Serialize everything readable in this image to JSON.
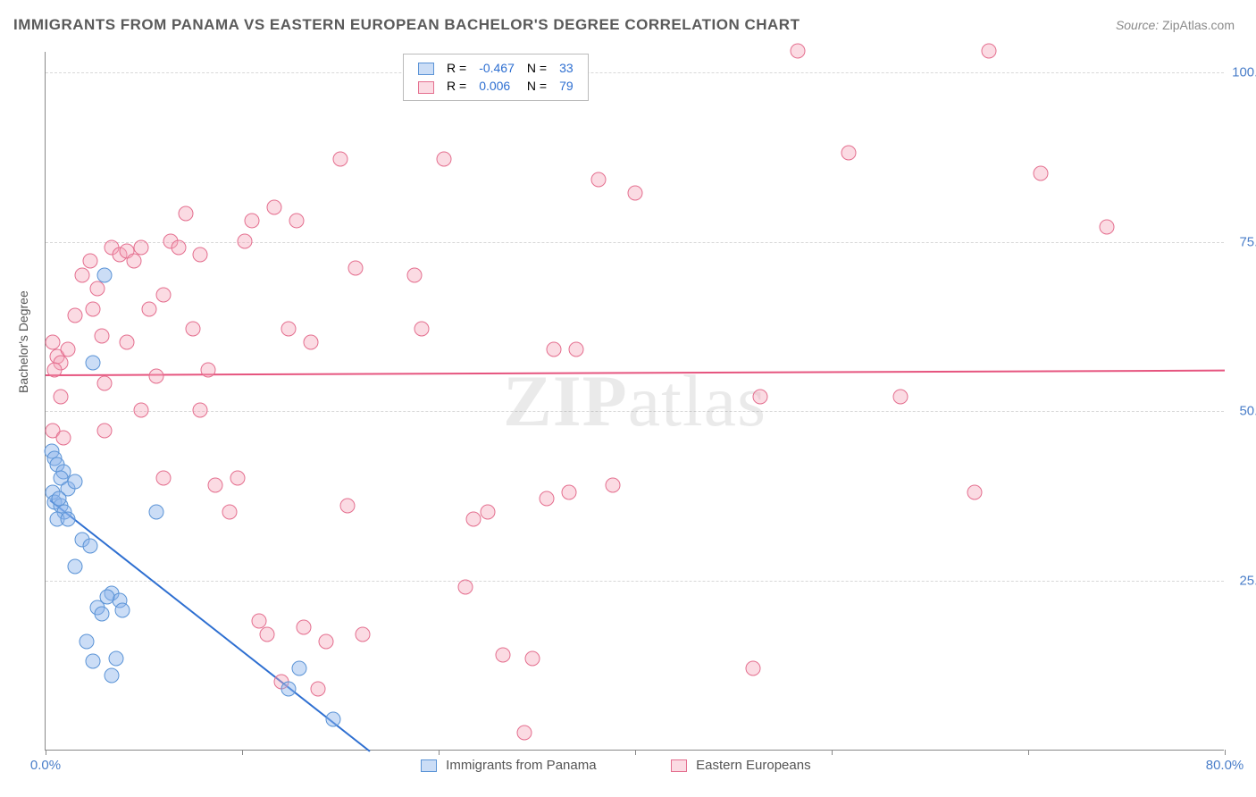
{
  "title": "IMMIGRANTS FROM PANAMA VS EASTERN EUROPEAN BACHELOR'S DEGREE CORRELATION CHART",
  "source": {
    "label": "Source:",
    "value": "ZipAtlas.com"
  },
  "watermark": {
    "a": "ZIP",
    "b": "atlas"
  },
  "y_axis": {
    "title": "Bachelor's Degree"
  },
  "chart": {
    "type": "scatter",
    "xlim": [
      0,
      80
    ],
    "ylim": [
      0,
      103
    ],
    "x_ticks": [
      0,
      13.33,
      26.66,
      40,
      53.33,
      66.66,
      80
    ],
    "x_tick_labels": {
      "0": "0.0%",
      "80": "80.0%"
    },
    "y_grid": [
      25,
      50,
      75,
      100
    ],
    "y_tick_labels": {
      "25": "25.0%",
      "50": "50.0%",
      "75": "75.0%",
      "100": "100.0%"
    },
    "background_color": "#ffffff",
    "grid_color": "#d8d8d8"
  },
  "series": {
    "a": {
      "label": "Immigrants from Panama",
      "fill": "rgba(140,180,235,0.45)",
      "stroke": "#5a93d6",
      "line_color": "#2e6fd1",
      "R": "-0.467",
      "N": "33",
      "trend": {
        "x1": 0.3,
        "y1": 37,
        "x2": 22,
        "y2": 0
      },
      "points": [
        [
          0.4,
          44
        ],
        [
          0.6,
          43
        ],
        [
          0.8,
          42
        ],
        [
          1.2,
          41
        ],
        [
          1.0,
          40
        ],
        [
          0.5,
          38
        ],
        [
          0.6,
          36.5
        ],
        [
          1.0,
          36
        ],
        [
          1.3,
          35
        ],
        [
          0.8,
          34
        ],
        [
          3.2,
          57
        ],
        [
          4.0,
          70
        ],
        [
          2.5,
          31
        ],
        [
          3.0,
          30
        ],
        [
          2.0,
          27
        ],
        [
          4.5,
          23
        ],
        [
          5.0,
          22
        ],
        [
          4.2,
          22.5
        ],
        [
          3.5,
          21
        ],
        [
          3.8,
          20
        ],
        [
          5.2,
          20.5
        ],
        [
          2.8,
          16
        ],
        [
          3.2,
          13
        ],
        [
          4.8,
          13.5
        ],
        [
          4.5,
          11
        ],
        [
          7.5,
          35
        ],
        [
          16.5,
          9
        ],
        [
          17.2,
          12
        ],
        [
          19.5,
          4.5
        ],
        [
          1.5,
          38.5
        ],
        [
          2.0,
          39.5
        ],
        [
          0.9,
          37
        ],
        [
          1.5,
          34
        ]
      ]
    },
    "b": {
      "label": "Eastern Europeans",
      "fill": "rgba(245,165,185,0.40)",
      "stroke": "#e46f8f",
      "line_color": "#e6557f",
      "R": "0.006",
      "N": "79",
      "trend": {
        "x1": 0,
        "y1": 55.5,
        "x2": 80,
        "y2": 56.2
      },
      "points": [
        [
          0.5,
          60
        ],
        [
          0.8,
          58
        ],
        [
          1.0,
          57
        ],
        [
          0.6,
          56
        ],
        [
          1.5,
          59
        ],
        [
          1.0,
          52
        ],
        [
          0.5,
          47
        ],
        [
          1.2,
          46
        ],
        [
          2.5,
          70
        ],
        [
          3.0,
          72
        ],
        [
          3.5,
          68
        ],
        [
          4.5,
          74
        ],
        [
          5.0,
          73
        ],
        [
          5.5,
          73.5
        ],
        [
          6.5,
          74
        ],
        [
          6.0,
          72
        ],
        [
          8.5,
          75
        ],
        [
          8.0,
          67
        ],
        [
          7.0,
          65
        ],
        [
          5.5,
          60
        ],
        [
          4.0,
          54
        ],
        [
          6.5,
          50
        ],
        [
          9.5,
          79
        ],
        [
          9.0,
          74
        ],
        [
          10.5,
          73
        ],
        [
          10.0,
          62
        ],
        [
          11.0,
          56
        ],
        [
          13.5,
          75
        ],
        [
          14.0,
          78
        ],
        [
          15.5,
          80
        ],
        [
          13.0,
          40
        ],
        [
          12.5,
          35
        ],
        [
          16.5,
          62
        ],
        [
          17.0,
          78
        ],
        [
          18.0,
          60
        ],
        [
          20.0,
          87
        ],
        [
          21.0,
          71
        ],
        [
          25.0,
          70
        ],
        [
          26.0,
          98
        ],
        [
          27.0,
          87
        ],
        [
          29.0,
          34
        ],
        [
          25.5,
          62
        ],
        [
          14.5,
          19
        ],
        [
          15.0,
          17
        ],
        [
          17.5,
          18
        ],
        [
          18.5,
          9
        ],
        [
          19.0,
          16
        ],
        [
          20.5,
          36
        ],
        [
          21.5,
          17
        ],
        [
          28.5,
          24
        ],
        [
          30.0,
          35
        ],
        [
          31.0,
          14
        ],
        [
          34.5,
          59
        ],
        [
          37.5,
          84
        ],
        [
          40.0,
          82
        ],
        [
          38.5,
          39
        ],
        [
          36.0,
          59
        ],
        [
          34.0,
          37
        ],
        [
          35.5,
          38
        ],
        [
          33.0,
          13.5
        ],
        [
          32.5,
          2.5
        ],
        [
          48.0,
          12
        ],
        [
          51.0,
          103
        ],
        [
          54.5,
          88
        ],
        [
          58.0,
          52
        ],
        [
          63.0,
          38
        ],
        [
          64.0,
          103
        ],
        [
          67.5,
          85
        ],
        [
          72.0,
          77
        ],
        [
          48.5,
          52
        ],
        [
          10.5,
          50
        ],
        [
          7.5,
          55
        ],
        [
          4.0,
          47
        ],
        [
          2.0,
          64
        ],
        [
          3.2,
          65
        ],
        [
          3.8,
          61
        ],
        [
          8.0,
          40
        ],
        [
          11.5,
          39
        ],
        [
          16.0,
          10
        ]
      ]
    }
  },
  "legend_bottom": {
    "a": "Immigrants from Panama",
    "b": "Eastern Europeans"
  },
  "legend_top": {
    "R_label": "R =",
    "N_label": "N ="
  }
}
